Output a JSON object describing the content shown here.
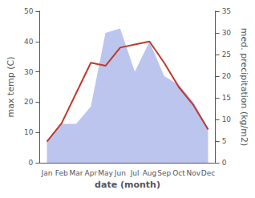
{
  "chart_data": {
    "type": "line",
    "categories": [
      "Jan",
      "Feb",
      "Mar",
      "Apr",
      "May",
      "Jun",
      "Jul",
      "Aug",
      "Sep",
      "Oct",
      "Nov",
      "Dec"
    ],
    "xlabel": "date (month)",
    "ylabel": "max temp (C)",
    "y2label": "med. precipitation (kg/m2)",
    "series": [
      {
        "type": "area",
        "color": "#bcc5ee",
        "axis": "y2",
        "values": [
          5,
          9,
          9,
          13,
          30,
          31,
          21,
          28,
          20,
          18,
          14,
          8
        ]
      },
      {
        "type": "line",
        "color": "#c0392b",
        "values": [
          7,
          13,
          23,
          33,
          32,
          38,
          39,
          40,
          33,
          25,
          19,
          11
        ]
      }
    ],
    "ylim": [
      0,
      50
    ],
    "yticks": [
      0,
      10,
      20,
      30,
      40,
      50
    ],
    "y2lim": [
      0,
      35
    ],
    "y2ticks": [
      0,
      5,
      10,
      15,
      20,
      25,
      30,
      35
    ],
    "grid": false
  }
}
